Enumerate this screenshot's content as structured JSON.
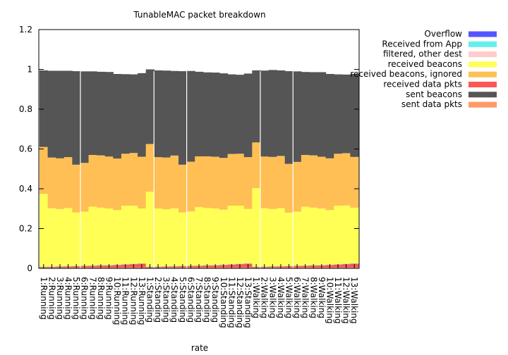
{
  "chart_data": {
    "type": "bar",
    "stacked": true,
    "title": "TunableMAC packet breakdown",
    "xlabel": "rate",
    "ylabel": "",
    "ylim": [
      0,
      1.2
    ],
    "yticks": [
      "0",
      "0.2",
      "0.4",
      "0.6",
      "0.8",
      "1",
      "1.2"
    ],
    "grid": false,
    "legend_position": "top-right, outside plot",
    "categories": [
      "1:Running",
      "2:Running",
      "3:Running",
      "4:Running",
      "5:Running",
      "6:Running",
      "7:Running",
      "8:Running",
      "9:Running",
      "10:Running",
      "11:Running",
      "12:Running",
      "13:Running",
      "1:Standing",
      "2:Standing",
      "3:Standing",
      "4:Standing",
      "5:Standing",
      "6:Standing",
      "7:Standing",
      "8:Standing",
      "9:Standing",
      "10:Standing",
      "11:Standing",
      "12:Standing",
      "13:Standing",
      "1:Walking",
      "2:Walking",
      "3:Walking",
      "4:Walking",
      "5:Walking",
      "6:Walking",
      "7:Walking",
      "8:Walking",
      "9:Walking",
      "10:Walking",
      "11:Walking",
      "12:Walking",
      "13:Walking"
    ],
    "group_separators_after": [
      4,
      13,
      17,
      26,
      30
    ],
    "series": [
      {
        "name": "sent data pkts",
        "color": "#ff9966",
        "values": [
          0.005,
          0.005,
          0.005,
          0.005,
          0.005,
          0.005,
          0.005,
          0.005,
          0.005,
          0.005,
          0.005,
          0.005,
          0.005,
          0.005,
          0.005,
          0.005,
          0.005,
          0.005,
          0.005,
          0.005,
          0.005,
          0.005,
          0.005,
          0.005,
          0.005,
          0.005,
          0.005,
          0.005,
          0.005,
          0.005,
          0.005,
          0.005,
          0.005,
          0.005,
          0.005,
          0.005,
          0.005,
          0.005,
          0.005
        ]
      },
      {
        "name": "received data pkts",
        "color": "#ff5555",
        "values": [
          0.002,
          0.003,
          0.004,
          0.005,
          0.006,
          0.007,
          0.008,
          0.009,
          0.01,
          0.012,
          0.014,
          0.016,
          0.018,
          0.002,
          0.003,
          0.004,
          0.005,
          0.006,
          0.007,
          0.008,
          0.009,
          0.01,
          0.012,
          0.014,
          0.016,
          0.018,
          0.002,
          0.003,
          0.004,
          0.005,
          0.006,
          0.007,
          0.008,
          0.009,
          0.01,
          0.012,
          0.014,
          0.016,
          0.018
        ]
      },
      {
        "name": "Received from App",
        "color": "#66eeee",
        "values": [
          0.002,
          0.002,
          0.002,
          0.002,
          0.002,
          0.002,
          0.002,
          0.002,
          0.002,
          0.002,
          0.002,
          0.002,
          0.002,
          0.002,
          0.002,
          0.002,
          0.002,
          0.002,
          0.002,
          0.002,
          0.002,
          0.002,
          0.002,
          0.002,
          0.002,
          0.002,
          0.002,
          0.002,
          0.002,
          0.002,
          0.002,
          0.002,
          0.002,
          0.002,
          0.002,
          0.002,
          0.002,
          0.002,
          0.002
        ]
      },
      {
        "name": "received beacons",
        "color": "#ffff55",
        "values": [
          0.366,
          0.292,
          0.287,
          0.291,
          0.268,
          0.271,
          0.295,
          0.289,
          0.284,
          0.274,
          0.294,
          0.292,
          0.276,
          0.376,
          0.291,
          0.286,
          0.29,
          0.268,
          0.272,
          0.293,
          0.287,
          0.284,
          0.276,
          0.294,
          0.292,
          0.274,
          0.394,
          0.292,
          0.287,
          0.291,
          0.267,
          0.271,
          0.295,
          0.289,
          0.284,
          0.274,
          0.294,
          0.293,
          0.28
        ]
      },
      {
        "name": "received beacons, ignored",
        "color": "#ffbf55",
        "values": [
          0.235,
          0.255,
          0.255,
          0.256,
          0.24,
          0.245,
          0.26,
          0.263,
          0.261,
          0.259,
          0.261,
          0.265,
          0.26,
          0.24,
          0.258,
          0.26,
          0.265,
          0.24,
          0.25,
          0.255,
          0.26,
          0.26,
          0.26,
          0.26,
          0.261,
          0.26,
          0.23,
          0.26,
          0.262,
          0.262,
          0.245,
          0.25,
          0.26,
          0.263,
          0.26,
          0.26,
          0.261,
          0.263,
          0.255
        ]
      },
      {
        "name": "sent beacons",
        "color": "#555555",
        "values": [
          0.385,
          0.436,
          0.44,
          0.434,
          0.47,
          0.46,
          0.42,
          0.42,
          0.425,
          0.425,
          0.4,
          0.395,
          0.42,
          0.375,
          0.436,
          0.437,
          0.425,
          0.47,
          0.456,
          0.425,
          0.422,
          0.423,
          0.425,
          0.4,
          0.397,
          0.42,
          0.362,
          0.432,
          0.437,
          0.43,
          0.466,
          0.455,
          0.417,
          0.418,
          0.425,
          0.424,
          0.399,
          0.395,
          0.417
        ]
      },
      {
        "name": "filtered, other dest",
        "color": "#ffcccc",
        "values": [
          0,
          0,
          0,
          0,
          0,
          0,
          0,
          0,
          0,
          0,
          0,
          0,
          0,
          0,
          0,
          0,
          0,
          0,
          0,
          0,
          0,
          0,
          0,
          0,
          0,
          0,
          0,
          0,
          0,
          0,
          0,
          0,
          0,
          0,
          0,
          0,
          0,
          0,
          0
        ]
      },
      {
        "name": "Overflow",
        "color": "#5555ff",
        "values": [
          0,
          0,
          0,
          0,
          0,
          0,
          0,
          0,
          0,
          0,
          0,
          0,
          0,
          0,
          0,
          0,
          0,
          0,
          0,
          0,
          0,
          0,
          0,
          0,
          0,
          0,
          0,
          0,
          0,
          0,
          0,
          0,
          0,
          0,
          0,
          0,
          0,
          0,
          0
        ]
      }
    ],
    "legend": [
      {
        "label": "Overflow",
        "color": "#5555ff"
      },
      {
        "label": "Received from App",
        "color": "#66eeee"
      },
      {
        "label": "filtered, other dest",
        "color": "#ffcccc"
      },
      {
        "label": "received beacons",
        "color": "#ffff55"
      },
      {
        "label": "received beacons, ignored",
        "color": "#ffbf55"
      },
      {
        "label": "received data pkts",
        "color": "#ff5555"
      },
      {
        "label": "sent beacons",
        "color": "#555555"
      },
      {
        "label": "sent data pkts",
        "color": "#ff9966"
      }
    ]
  }
}
